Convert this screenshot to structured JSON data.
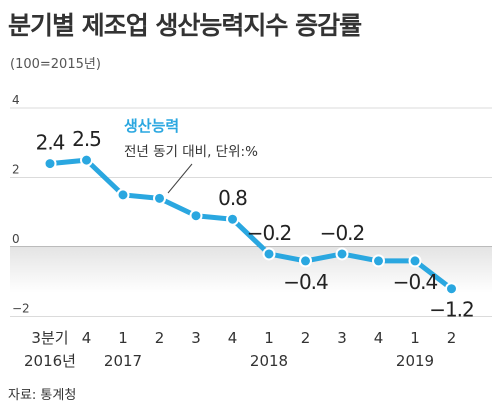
{
  "title": "분기별 제조업 생산능력지수 증감률",
  "subtitle": "(100=2015년)",
  "source": "자료: 통계청",
  "colors": {
    "line": "#2aa7e0",
    "marker_fill": "#2aa7e0",
    "marker_stroke": "#ffffff",
    "series_label": "#2aa7e0",
    "negative_band_top": "#e4e4e4",
    "negative_band_bottom": "#ffffff"
  },
  "chart_data": {
    "type": "line",
    "ylim": [
      -2,
      4
    ],
    "yticks": [
      "4",
      "2",
      "0",
      "−2"
    ],
    "grid": true,
    "quarter_labels": [
      "3분기",
      "4",
      "1",
      "2",
      "3",
      "4",
      "1",
      "2",
      "3",
      "4",
      "1",
      "2"
    ],
    "year_labels": [
      {
        "label": "2016년",
        "index": 0
      },
      {
        "label": "2017",
        "index": 2
      },
      {
        "label": "2018",
        "index": 6
      },
      {
        "label": "2019",
        "index": 10
      }
    ],
    "series": [
      {
        "name": "생산능력",
        "values": [
          2.4,
          2.5,
          1.5,
          1.4,
          0.9,
          0.8,
          -0.2,
          -0.4,
          -0.2,
          -0.4,
          -0.4,
          -1.2
        ],
        "data_labels": [
          "2.4",
          "2.5",
          "",
          "",
          "",
          "0.8",
          "−0.2",
          "−0.4",
          "−0.2",
          "",
          "−0.4",
          "−1.2"
        ]
      }
    ],
    "annotation": "전년 동기 대비, 단위:%"
  }
}
